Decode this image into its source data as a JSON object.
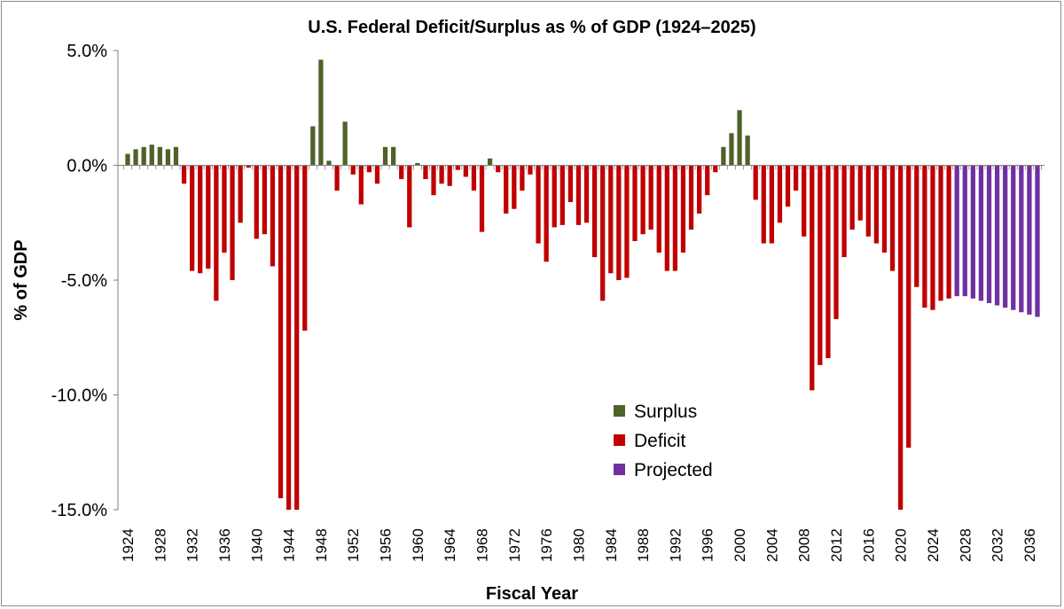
{
  "chart_data": {
    "type": "bar",
    "title": "U.S. Federal Deficit/Surplus as % of GDP (1924–2025)",
    "xlabel": "Fiscal Year",
    "ylabel": "% of GDP",
    "ylim": [
      -15,
      5
    ],
    "yticks": [
      "5.0%",
      "0.0%",
      "-5.0%",
      "-10.0%",
      "-15.0%"
    ],
    "ytick_values": [
      5,
      0,
      -5,
      -10,
      -15
    ],
    "x_tick_labels": [
      "1924",
      "1928",
      "1932",
      "1936",
      "1940",
      "1944",
      "1948",
      "1952",
      "1956",
      "1960",
      "1964",
      "1968",
      "1972",
      "1976",
      "1980",
      "1984",
      "1988",
      "1992",
      "1996",
      "2000",
      "2004",
      "2008",
      "2012",
      "2016",
      "2020",
      "2024",
      "2028",
      "2032",
      "2036"
    ],
    "grid": false,
    "legend_position": "lower-center",
    "colors": {
      "Surplus": "#4f6228",
      "Deficit": "#c00000",
      "Projected": "#7030a0"
    },
    "legend": [
      "Surplus",
      "Deficit",
      "Projected"
    ],
    "first_year": 1924,
    "last_actual_year": 2026,
    "values": [
      0.5,
      0.7,
      0.8,
      0.9,
      0.8,
      0.7,
      0.8,
      -0.8,
      -4.6,
      -4.7,
      -4.5,
      -5.9,
      -3.8,
      -5.0,
      -2.5,
      -0.1,
      -3.2,
      -3.0,
      -4.4,
      -14.5,
      -15.0,
      -15.0,
      -7.2,
      1.7,
      4.6,
      0.2,
      -1.1,
      1.9,
      -0.4,
      -1.7,
      -0.3,
      -0.8,
      0.8,
      0.8,
      -0.6,
      -2.7,
      0.1,
      -0.6,
      -1.3,
      -0.8,
      -0.9,
      -0.2,
      -0.5,
      -1.1,
      -2.9,
      0.3,
      -0.3,
      -2.1,
      -1.9,
      -1.1,
      -0.4,
      -3.4,
      -4.2,
      -2.7,
      -2.6,
      -1.6,
      -2.6,
      -2.5,
      -4.0,
      -5.9,
      -4.7,
      -5.0,
      -4.9,
      -3.3,
      -3.0,
      -2.8,
      -3.8,
      -4.6,
      -4.6,
      -3.8,
      -2.8,
      -2.1,
      -1.3,
      -0.3,
      0.8,
      1.4,
      2.4,
      1.3,
      -1.5,
      -3.4,
      -3.4,
      -2.5,
      -1.8,
      -1.1,
      -3.1,
      -9.8,
      -8.7,
      -8.4,
      -6.7,
      -4.0,
      -2.8,
      -2.4,
      -3.1,
      -3.4,
      -3.8,
      -4.6,
      -15.0,
      -12.3,
      -5.3,
      -6.2,
      -6.3,
      -5.9,
      -5.8,
      -5.7,
      -5.7,
      -5.8,
      -5.9,
      -6.0,
      -6.1,
      -6.2,
      -6.3,
      -6.4,
      -6.5,
      -6.6
    ]
  }
}
